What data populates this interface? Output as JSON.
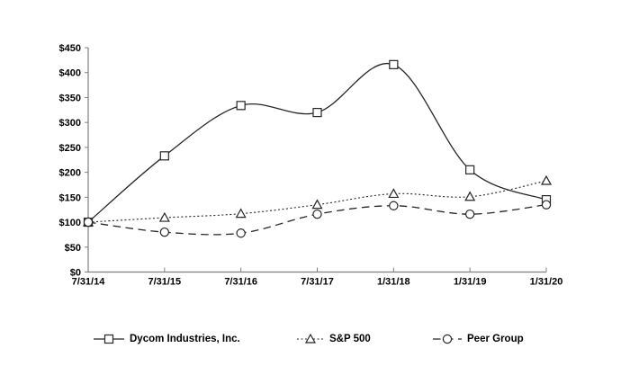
{
  "chart_data": {
    "type": "line",
    "title": "",
    "line_style": "smooth",
    "grid": false,
    "legend_position": "bottom",
    "x_labels": [
      "7/31/14",
      "7/31/15",
      "7/31/16",
      "7/31/17",
      "1/31/18",
      "1/31/19",
      "1/31/20"
    ],
    "ylim": [
      0,
      450
    ],
    "y_ticks": [
      {
        "v": 0,
        "label": "$0"
      },
      {
        "v": 50,
        "label": "$50"
      },
      {
        "v": 100,
        "label": "$100"
      },
      {
        "v": 150,
        "label": "$150"
      },
      {
        "v": 200,
        "label": "$200"
      },
      {
        "v": 250,
        "label": "$250"
      },
      {
        "v": 300,
        "label": "$300"
      },
      {
        "v": 350,
        "label": "$350"
      },
      {
        "v": 400,
        "label": "$400"
      },
      {
        "v": 450,
        "label": "$450"
      }
    ],
    "series": [
      {
        "name": "Dycom Industries, Inc.",
        "marker": "square",
        "dash": "solid",
        "values": [
          100,
          233,
          334,
          320,
          416,
          205,
          145
        ]
      },
      {
        "name": "S&P 500",
        "marker": "triangle",
        "dash": "dotted",
        "values": [
          100,
          109,
          117,
          135,
          157,
          151,
          183
        ]
      },
      {
        "name": "Peer Group",
        "marker": "circle",
        "dash": "dashed",
        "values": [
          100,
          80,
          78,
          116,
          133,
          116,
          135
        ]
      }
    ],
    "colors": {
      "line": "#262626",
      "marker_fill": "#ffffff",
      "axis": "#808080",
      "text": "#000000",
      "background": "#ffffff"
    }
  }
}
